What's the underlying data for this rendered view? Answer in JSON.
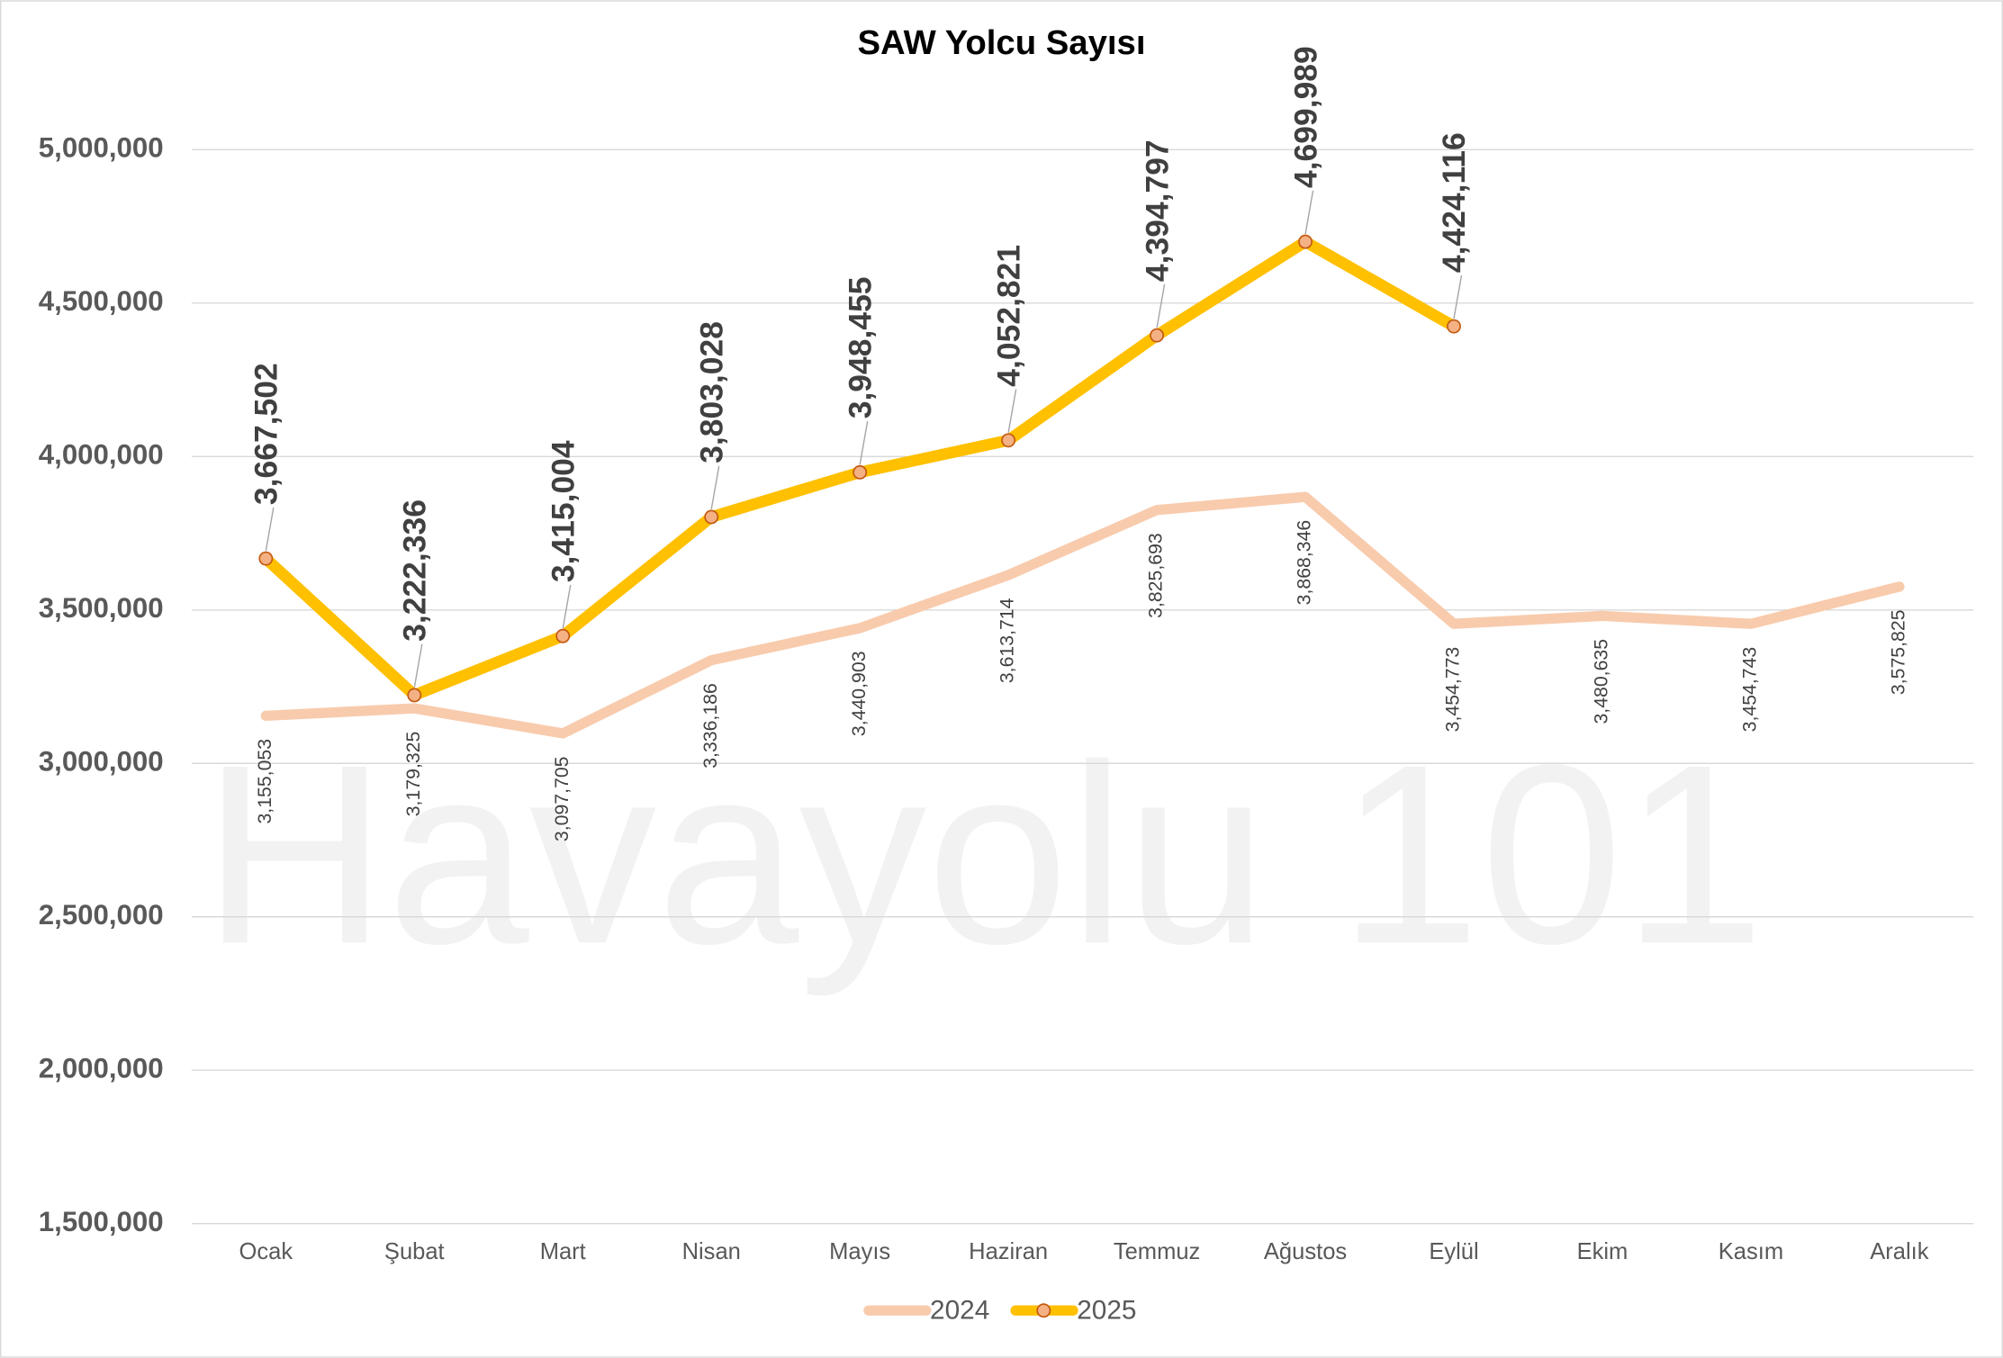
{
  "chart_data": {
    "type": "line",
    "title": "SAW Yolcu Sayısı",
    "annotation": "Havayolu 101",
    "categories": [
      "Ocak",
      "Şubat",
      "Mart",
      "Nisan",
      "Mayıs",
      "Haziran",
      "Temmuz",
      "Ağustos",
      "Eylül",
      "Ekim",
      "Kasım",
      "Aralık"
    ],
    "series": [
      {
        "name": "2024",
        "color": "#f8cbad",
        "values": [
          3155053,
          3179325,
          3097705,
          3336186,
          3440903,
          3613714,
          3825693,
          3868346,
          3454773,
          3480635,
          3454743,
          3575825
        ],
        "value_labels": [
          "3,155,053",
          "3,179,325",
          "3,097,705",
          "3,336,186",
          "3,440,903",
          "3,613,714",
          "3,825,693",
          "3,868,346",
          "3,454,773",
          "3,480,635",
          "3,454,743",
          "3,575,825"
        ]
      },
      {
        "name": "2025",
        "color": "#ffc000",
        "values": [
          3667502,
          3222336,
          3415004,
          3803028,
          3948455,
          4052821,
          4394797,
          4699989,
          4424116,
          null,
          null,
          null
        ],
        "value_labels": [
          "3,667,502",
          "3,222,336",
          "3,415,004",
          "3,803,028",
          "3,948,455",
          "4,052,821",
          "4,394,797",
          "4,699,989",
          "4,424,116",
          null,
          null,
          null
        ]
      }
    ],
    "ylim": [
      1500000,
      5000000
    ],
    "yticks": [
      {
        "value": 1500000,
        "label": "1,500,000"
      },
      {
        "value": 2000000,
        "label": "2,000,000"
      },
      {
        "value": 2500000,
        "label": "2,500,000"
      },
      {
        "value": 3000000,
        "label": "3,000,000"
      },
      {
        "value": 3500000,
        "label": "3,500,000"
      },
      {
        "value": 4000000,
        "label": "4,000,000"
      },
      {
        "value": 4500000,
        "label": "4,500,000"
      },
      {
        "value": 5000000,
        "label": "5,000,000"
      }
    ],
    "grid": true,
    "legend": "bottom"
  }
}
